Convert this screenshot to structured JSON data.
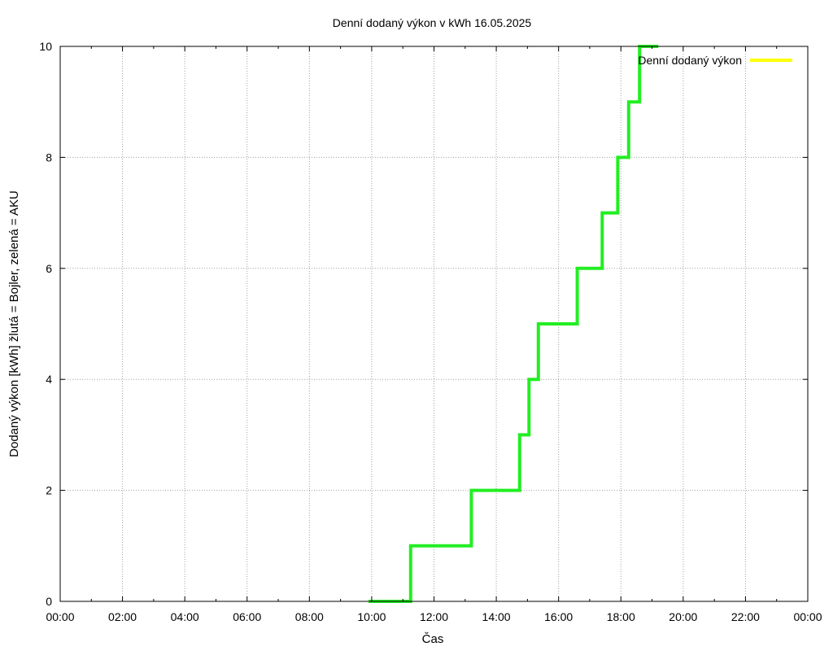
{
  "chart_data": {
    "type": "line",
    "title": "Denní dodaný výkon v kWh 16.05.2025",
    "xlabel": "Čas",
    "ylabel": "Dodaný výkon [kWh]  žlutá = Bojler, zelená = AKU",
    "xlim": [
      0,
      24
    ],
    "ylim": [
      0,
      10
    ],
    "x_ticks": [
      "00:00",
      "02:00",
      "04:00",
      "06:00",
      "08:00",
      "10:00",
      "12:00",
      "14:00",
      "16:00",
      "18:00",
      "20:00",
      "22:00",
      "00:00"
    ],
    "y_ticks": [
      "0",
      "2",
      "4",
      "6",
      "8",
      "10"
    ],
    "grid": true,
    "legend_position": "top-right",
    "legend": [
      {
        "label": "Denní dodaný výkon",
        "color": "#ffff00"
      }
    ],
    "series": [
      {
        "name": "AKU",
        "color": "#22ee22",
        "step": true,
        "points": [
          {
            "x": 9.9,
            "y": 0
          },
          {
            "x": 10.6,
            "y": 0
          },
          {
            "x": 11.25,
            "y": 0
          },
          {
            "x": 11.25,
            "y": 1
          },
          {
            "x": 13.2,
            "y": 1
          },
          {
            "x": 13.2,
            "y": 2
          },
          {
            "x": 14.75,
            "y": 2
          },
          {
            "x": 14.75,
            "y": 3
          },
          {
            "x": 15.05,
            "y": 3
          },
          {
            "x": 15.05,
            "y": 4
          },
          {
            "x": 15.35,
            "y": 4
          },
          {
            "x": 15.35,
            "y": 5
          },
          {
            "x": 16.6,
            "y": 5
          },
          {
            "x": 16.6,
            "y": 6
          },
          {
            "x": 17.4,
            "y": 6
          },
          {
            "x": 17.4,
            "y": 7
          },
          {
            "x": 17.9,
            "y": 7
          },
          {
            "x": 17.9,
            "y": 8
          },
          {
            "x": 18.25,
            "y": 8
          },
          {
            "x": 18.25,
            "y": 9
          },
          {
            "x": 18.6,
            "y": 9
          },
          {
            "x": 18.6,
            "y": 10
          },
          {
            "x": 19.2,
            "y": 10
          }
        ]
      },
      {
        "name": "Bojler",
        "color": "#ffff00",
        "step": true,
        "points": []
      }
    ]
  }
}
